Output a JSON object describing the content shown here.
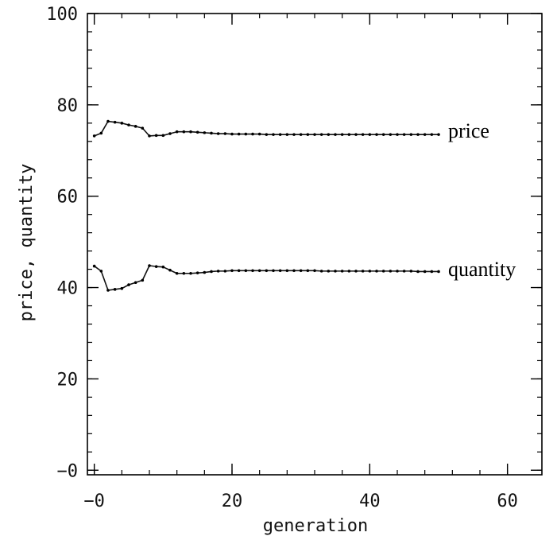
{
  "chart_data": {
    "type": "line",
    "xlabel": "generation",
    "ylabel": "price, quantity",
    "xlim": [
      -1,
      65
    ],
    "ylim": [
      -1,
      100
    ],
    "xticks": [
      {
        "value": 0,
        "label": "−0"
      },
      {
        "value": 20,
        "label": "20"
      },
      {
        "value": 40,
        "label": "40"
      },
      {
        "value": 60,
        "label": "60"
      }
    ],
    "yticks": [
      {
        "value": 0,
        "label": "−0"
      },
      {
        "value": 20,
        "label": "20"
      },
      {
        "value": 40,
        "label": "40"
      },
      {
        "value": 60,
        "label": "60"
      },
      {
        "value": 80,
        "label": "80"
      },
      {
        "value": 100,
        "label": "100"
      }
    ],
    "grid": false,
    "series": [
      {
        "name": "price",
        "x": [
          0,
          1,
          2,
          3,
          4,
          5,
          6,
          7,
          8,
          9,
          10,
          11,
          12,
          13,
          14,
          15,
          16,
          17,
          18,
          19,
          20,
          21,
          22,
          23,
          24,
          25,
          26,
          27,
          28,
          29,
          30,
          31,
          32,
          33,
          34,
          35,
          36,
          37,
          38,
          39,
          40,
          41,
          42,
          43,
          44,
          45,
          46,
          47,
          48,
          49,
          50
        ],
        "y": [
          73.2,
          73.8,
          76.4,
          76.2,
          76.0,
          75.6,
          75.3,
          74.9,
          73.2,
          73.3,
          73.3,
          73.7,
          74.1,
          74.1,
          74.1,
          74.0,
          73.9,
          73.8,
          73.7,
          73.7,
          73.6,
          73.6,
          73.6,
          73.6,
          73.6,
          73.5,
          73.5,
          73.5,
          73.5,
          73.5,
          73.5,
          73.5,
          73.5,
          73.5,
          73.5,
          73.5,
          73.5,
          73.5,
          73.5,
          73.5,
          73.5,
          73.5,
          73.5,
          73.5,
          73.5,
          73.5,
          73.5,
          73.5,
          73.5,
          73.5,
          73.5
        ]
      },
      {
        "name": "quantity",
        "x": [
          0,
          1,
          2,
          3,
          4,
          5,
          6,
          7,
          8,
          9,
          10,
          11,
          12,
          13,
          14,
          15,
          16,
          17,
          18,
          19,
          20,
          21,
          22,
          23,
          24,
          25,
          26,
          27,
          28,
          29,
          30,
          31,
          32,
          33,
          34,
          35,
          36,
          37,
          38,
          39,
          40,
          41,
          42,
          43,
          44,
          45,
          46,
          47,
          48,
          49,
          50
        ],
        "y": [
          44.7,
          43.6,
          39.4,
          39.6,
          39.8,
          40.6,
          41.1,
          41.6,
          44.8,
          44.6,
          44.5,
          43.8,
          43.1,
          43.1,
          43.1,
          43.2,
          43.3,
          43.5,
          43.6,
          43.6,
          43.7,
          43.7,
          43.7,
          43.7,
          43.7,
          43.7,
          43.7,
          43.7,
          43.7,
          43.7,
          43.7,
          43.7,
          43.7,
          43.6,
          43.6,
          43.6,
          43.6,
          43.6,
          43.6,
          43.6,
          43.6,
          43.6,
          43.6,
          43.6,
          43.6,
          43.6,
          43.6,
          43.5,
          43.5,
          43.5,
          43.5
        ]
      }
    ]
  }
}
